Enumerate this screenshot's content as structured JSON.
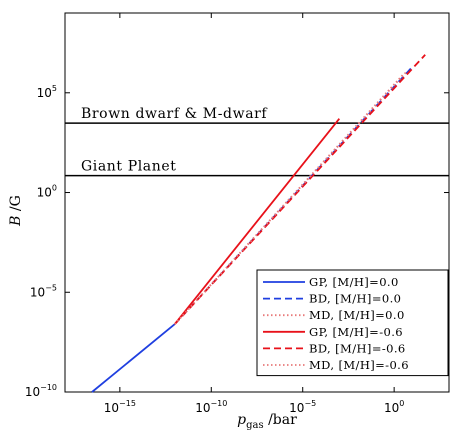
{
  "chart_data": {
    "type": "line",
    "xscale": "log",
    "yscale": "log",
    "xlim": [
      1e-18,
      1000.0
    ],
    "ylim": [
      1e-10,
      1000000000.0
    ],
    "xticks": [
      1e-15,
      1e-10,
      1e-05,
      1
    ],
    "yticks": [
      1e-10,
      1e-05,
      1,
      100000.0
    ],
    "xtick_labels": [
      {
        "base": "10",
        "exp": "−15"
      },
      {
        "base": "10",
        "exp": "−10"
      },
      {
        "base": "10",
        "exp": "−5"
      },
      {
        "base": "10",
        "exp": "0"
      }
    ],
    "ytick_labels": [
      {
        "base": "10",
        "exp": "−10"
      },
      {
        "base": "10",
        "exp": "−5"
      },
      {
        "base": "10",
        "exp": "0"
      },
      {
        "base": "10",
        "exp": "5"
      }
    ],
    "xlabel": "p_gas /bar",
    "xlabel_main": "p",
    "xlabel_sub": "gas",
    "xlabel_unit": " /bar",
    "ylabel": "B /G",
    "ylabel_main": "B",
    "ylabel_unit": " /G",
    "hlines": [
      {
        "label": "Brown dwarf & M-dwarf",
        "y": 3000
      },
      {
        "label": "Giant Planet",
        "y": 7
      }
    ],
    "legend_position": "lower-right",
    "series": [
      {
        "name": "GP, [M/H]=0.0",
        "color": "#1f3fe0",
        "style": "solid",
        "x": [
          3e-17,
          1e-12
        ],
        "y": [
          1e-10,
          2.5e-07
        ]
      },
      {
        "name": "BD, [M/H]=0.0",
        "color": "#1f3fe0",
        "style": "dashed",
        "x": [
          1e-12,
          10
        ],
        "y": [
          2.5e-07,
          2000000.0
        ]
      },
      {
        "name": "MD, [M/H]=0.0",
        "color": "#e87a7a",
        "style": "dotted",
        "x": [
          1e-12,
          3
        ],
        "y": [
          2.5e-07,
          800000.0
        ]
      },
      {
        "name": "GP, [M/H]=-0.6",
        "color": "#e8111a",
        "style": "solid",
        "x": [
          1e-12,
          0.001
        ],
        "y": [
          2.5e-07,
          5000.0
        ]
      },
      {
        "name": "BD, [M/H]=-0.6",
        "color": "#e8111a",
        "style": "dashed",
        "x": [
          1e-12,
          50
        ],
        "y": [
          2.5e-07,
          8000000.0
        ]
      },
      {
        "name": "MD, [M/H]=-0.6",
        "color": "#e87a7a",
        "style": "dotted",
        "x": [
          1e-12,
          5
        ],
        "y": [
          2.5e-07,
          1200000.0
        ]
      }
    ]
  }
}
